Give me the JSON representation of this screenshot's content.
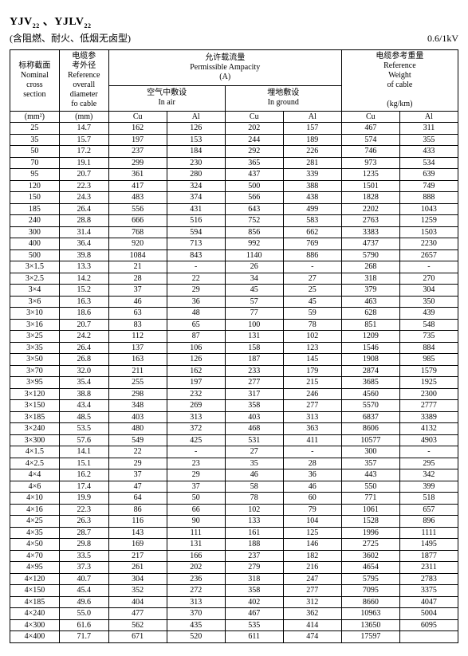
{
  "title_html": "YJV<sub>22</sub> 、YJLV<sub>22</sub>",
  "subtitle": "(含阻燃、耐火、低烟无卤型)",
  "voltage": "0.6/1kV",
  "headers": {
    "section": "标称截面\nNominal\ncross\nsection",
    "section_unit": "(mm²)",
    "diameter": "电缆参\n考外径\nReference\noverall\ndiameter\nfo cable",
    "diameter_unit": "(mm)",
    "ampacity": "允许载流量\nPermissible Ampacity\n(A)",
    "in_air": "空气中敷设\nIn air",
    "in_ground": "埋地敷设\nIn ground",
    "weight": "电缆参考重量\nReference\nWeight\nof cable",
    "weight_unit": "(kg/km)",
    "cu": "Cu",
    "al": "Al"
  },
  "groups": [
    [
      [
        "25",
        "14.7",
        "162",
        "126",
        "202",
        "157",
        "467",
        "311"
      ],
      [
        "35",
        "15.7",
        "197",
        "153",
        "244",
        "189",
        "574",
        "355"
      ],
      [
        "50",
        "17.2",
        "237",
        "184",
        "292",
        "226",
        "746",
        "433"
      ],
      [
        "70",
        "19.1",
        "299",
        "230",
        "365",
        "281",
        "973",
        "534"
      ],
      [
        "95",
        "20.7",
        "361",
        "280",
        "437",
        "339",
        "1235",
        "639"
      ],
      [
        "120",
        "22.3",
        "417",
        "324",
        "500",
        "388",
        "1501",
        "749"
      ],
      [
        "150",
        "24.3",
        "483",
        "374",
        "566",
        "438",
        "1828",
        "888"
      ],
      [
        "185",
        "26.4",
        "556",
        "431",
        "643",
        "499",
        "2202",
        "1043"
      ],
      [
        "240",
        "28.8",
        "666",
        "516",
        "752",
        "583",
        "2763",
        "1259"
      ],
      [
        "300",
        "31.4",
        "768",
        "594",
        "856",
        "662",
        "3383",
        "1503"
      ],
      [
        "400",
        "36.4",
        "920",
        "713",
        "992",
        "769",
        "4737",
        "2230"
      ],
      [
        "500",
        "39.8",
        "1084",
        "843",
        "1140",
        "886",
        "5790",
        "2657"
      ]
    ],
    [
      [
        "3×1.5",
        "13.3",
        "21",
        "-",
        "26",
        "-",
        "268",
        "-"
      ],
      [
        "3×2.5",
        "14.2",
        "28",
        "22",
        "34",
        "27",
        "318",
        "270"
      ],
      [
        "3×4",
        "15.2",
        "37",
        "29",
        "45",
        "25",
        "379",
        "304"
      ],
      [
        "3×6",
        "16.3",
        "46",
        "36",
        "57",
        "45",
        "463",
        "350"
      ],
      [
        "3×10",
        "18.6",
        "63",
        "48",
        "77",
        "59",
        "628",
        "439"
      ],
      [
        "3×16",
        "20.7",
        "83",
        "65",
        "100",
        "78",
        "851",
        "548"
      ],
      [
        "3×25",
        "24.2",
        "112",
        "87",
        "131",
        "102",
        "1209",
        "735"
      ],
      [
        "3×35",
        "26.4",
        "137",
        "106",
        "158",
        "123",
        "1546",
        "884"
      ],
      [
        "3×50",
        "26.8",
        "163",
        "126",
        "187",
        "145",
        "1908",
        "985"
      ],
      [
        "3×70",
        "32.0",
        "211",
        "162",
        "233",
        "179",
        "2874",
        "1579"
      ],
      [
        "3×95",
        "35.4",
        "255",
        "197",
        "277",
        "215",
        "3685",
        "1925"
      ],
      [
        "3×120",
        "38.8",
        "298",
        "232",
        "317",
        "246",
        "4560",
        "2300"
      ],
      [
        "3×150",
        "43.4",
        "348",
        "269",
        "358",
        "277",
        "5570",
        "2777"
      ],
      [
        "3×185",
        "48.5",
        "403",
        "313",
        "403",
        "313",
        "6837",
        "3389"
      ],
      [
        "3×240",
        "53.5",
        "480",
        "372",
        "468",
        "363",
        "8606",
        "4132"
      ],
      [
        "3×300",
        "57.6",
        "549",
        "425",
        "531",
        "411",
        "10577",
        "4903"
      ]
    ],
    [
      [
        "4×1.5",
        "14.1",
        "22",
        "-",
        "27",
        "-",
        "300",
        "-"
      ],
      [
        "4×2.5",
        "15.1",
        "29",
        "23",
        "35",
        "28",
        "357",
        "295"
      ],
      [
        "4×4",
        "16.2",
        "37",
        "29",
        "46",
        "36",
        "443",
        "342"
      ],
      [
        "4×6",
        "17.4",
        "47",
        "37",
        "58",
        "46",
        "550",
        "399"
      ],
      [
        "4×10",
        "19.9",
        "64",
        "50",
        "78",
        "60",
        "771",
        "518"
      ],
      [
        "4×16",
        "22.3",
        "86",
        "66",
        "102",
        "79",
        "1061",
        "657"
      ],
      [
        "4×25",
        "26.3",
        "116",
        "90",
        "133",
        "104",
        "1528",
        "896"
      ],
      [
        "4×35",
        "28.7",
        "143",
        "111",
        "161",
        "125",
        "1996",
        "1111"
      ],
      [
        "4×50",
        "29.8",
        "169",
        "131",
        "188",
        "146",
        "2725",
        "1495"
      ],
      [
        "4×70",
        "33.5",
        "217",
        "166",
        "237",
        "182",
        "3602",
        "1877"
      ],
      [
        "4×95",
        "37.3",
        "261",
        "202",
        "279",
        "216",
        "4654",
        "2311"
      ],
      [
        "4×120",
        "40.7",
        "304",
        "236",
        "318",
        "247",
        "5795",
        "2783"
      ],
      [
        "4×150",
        "45.4",
        "352",
        "272",
        "358",
        "277",
        "7095",
        "3375"
      ],
      [
        "4×185",
        "49.6",
        "404",
        "313",
        "402",
        "312",
        "8660",
        "4047"
      ],
      [
        "4×240",
        "55.0",
        "477",
        "370",
        "467",
        "362",
        "10963",
        "5004"
      ],
      [
        "4×300",
        "61.6",
        "562",
        "435",
        "535",
        "414",
        "13650",
        "6095"
      ],
      [
        "4×400",
        "71.7",
        "671",
        "520",
        "611",
        "474",
        "17597",
        ""
      ]
    ]
  ]
}
